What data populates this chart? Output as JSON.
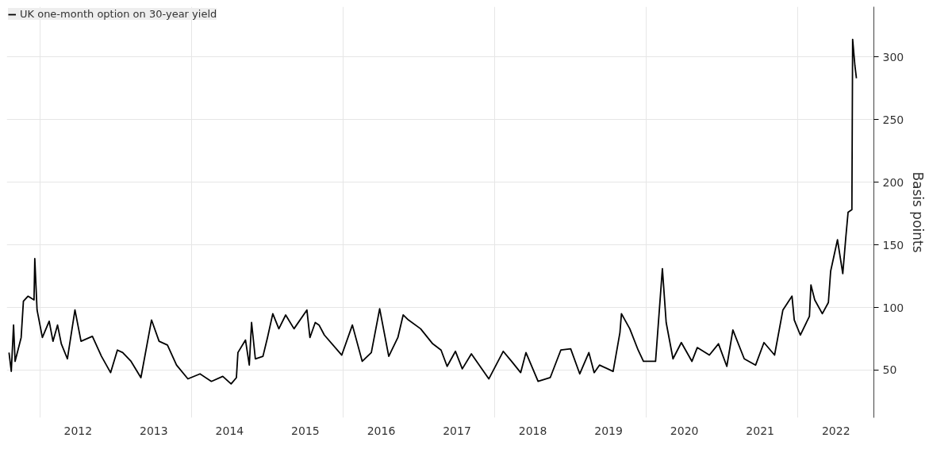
{
  "chart_data": {
    "type": "line",
    "ylabel": "Basis points",
    "legend": "top left",
    "grid": true,
    "line_style": "solid",
    "marker": "none",
    "xlim": [
      2011.56,
      2023.0
    ],
    "ylim": [
      12,
      340
    ],
    "xticks": [
      {
        "value": 2012,
        "label": null
      },
      {
        "value": 2012.5,
        "label": "2012"
      },
      {
        "value": 2013.5,
        "label": "2013"
      },
      {
        "value": 2014,
        "label": null
      },
      {
        "value": 2014.5,
        "label": "2014"
      },
      {
        "value": 2015.5,
        "label": "2015"
      },
      {
        "value": 2016,
        "label": null
      },
      {
        "value": 2016.5,
        "label": "2016"
      },
      {
        "value": 2017.5,
        "label": "2017"
      },
      {
        "value": 2018,
        "label": null
      },
      {
        "value": 2018.5,
        "label": "2018"
      },
      {
        "value": 2019.5,
        "label": "2019"
      },
      {
        "value": 2020,
        "label": null
      },
      {
        "value": 2020.5,
        "label": "2020"
      },
      {
        "value": 2021.5,
        "label": "2021"
      },
      {
        "value": 2022,
        "label": null
      },
      {
        "value": 2022.5,
        "label": "2022"
      }
    ],
    "yticks": [
      50,
      100,
      150,
      200,
      250,
      300
    ],
    "series": [
      {
        "name": "UK one-month option on 30-year yield",
        "color": "#000000",
        "x": [
          2011.59,
          2011.62,
          2011.65,
          2011.67,
          2011.75,
          2011.78,
          2011.84,
          2011.92,
          2011.93,
          2011.96,
          2012.03,
          2012.12,
          2012.17,
          2012.23,
          2012.28,
          2012.36,
          2012.46,
          2012.54,
          2012.69,
          2012.81,
          2012.93,
          2013.02,
          2013.09,
          2013.2,
          2013.33,
          2013.47,
          2013.57,
          2013.68,
          2013.8,
          2013.95,
          2014.11,
          2014.26,
          2014.41,
          2014.52,
          2014.59,
          2014.61,
          2014.71,
          2014.76,
          2014.79,
          2014.84,
          2014.94,
          2015.0,
          2015.07,
          2015.15,
          2015.24,
          2015.35,
          2015.52,
          2015.56,
          2015.63,
          2015.68,
          2015.75,
          2015.98,
          2016.12,
          2016.25,
          2016.37,
          2016.48,
          2016.6,
          2016.72,
          2016.79,
          2016.86,
          2017.02,
          2017.18,
          2017.29,
          2017.37,
          2017.48,
          2017.57,
          2017.69,
          2017.92,
          2018.11,
          2018.22,
          2018.34,
          2018.41,
          2018.57,
          2018.73,
          2018.87,
          2019.0,
          2019.12,
          2019.24,
          2019.31,
          2019.38,
          2019.56,
          2019.65,
          2019.67,
          2019.78,
          2019.89,
          2019.96,
          2020.12,
          2020.21,
          2020.26,
          2020.35,
          2020.46,
          2020.6,
          2020.67,
          2020.83,
          2020.95,
          2021.06,
          2021.14,
          2021.29,
          2021.44,
          2021.55,
          2021.69,
          2021.8,
          2021.92,
          2021.95,
          2022.03,
          2022.15,
          2022.17,
          2022.22,
          2022.32,
          2022.4,
          2022.43,
          2022.52,
          2022.59,
          2022.63,
          2022.66,
          2022.71,
          2022.72,
          2022.75,
          2022.77
        ],
        "values": [
          64,
          49,
          86,
          57,
          76,
          105,
          109,
          106,
          139,
          98,
          76,
          89,
          73,
          86,
          71,
          59,
          98,
          73,
          77,
          61,
          48,
          66,
          64,
          57,
          44,
          90,
          73,
          70,
          54,
          43,
          47,
          41,
          45,
          39,
          44,
          64,
          74,
          54,
          88,
          59,
          61,
          76,
          95,
          83,
          94,
          83,
          98,
          76,
          88,
          86,
          78,
          62,
          86,
          57,
          64,
          99,
          61,
          76,
          94,
          90,
          83,
          71,
          66,
          53,
          65,
          51,
          63,
          43,
          65,
          57,
          48,
          64,
          41,
          44,
          66,
          67,
          47,
          64,
          48,
          54,
          49,
          80,
          95,
          83,
          66,
          57,
          57,
          131,
          88,
          59,
          72,
          57,
          68,
          62,
          71,
          53,
          82,
          59,
          54,
          72,
          62,
          98,
          109,
          90,
          78,
          93,
          118,
          106,
          95,
          104,
          129,
          154,
          127,
          156,
          176,
          178,
          314,
          293,
          283
        ]
      }
    ]
  }
}
